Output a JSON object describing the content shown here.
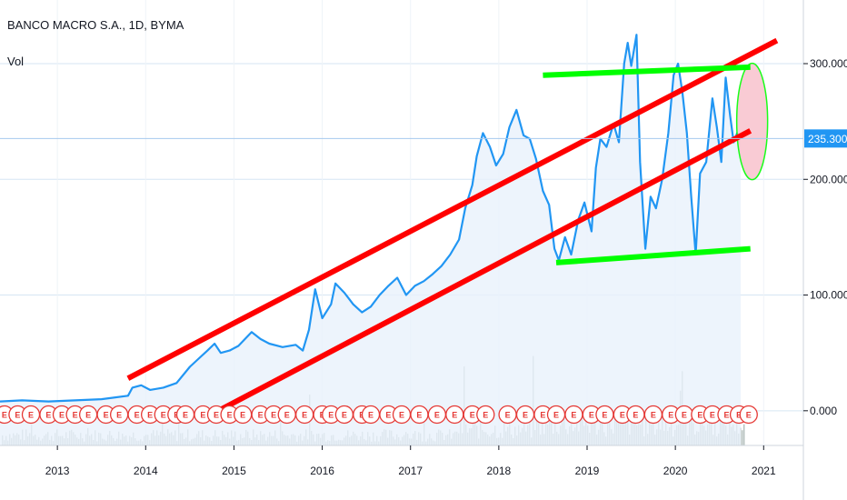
{
  "header": {
    "symbol_line": "BANCO MACRO S.A., 1D, BYMA",
    "volume_label": "Vol"
  },
  "colors": {
    "price_line": "#2196f3",
    "area_fill": "#e8f1fb",
    "volume": "#9aa8a6",
    "grid": "#d6e6f3",
    "trend_red": "#ff0000",
    "trend_green": "#00ff00",
    "ellipse_fill": "#f9c6d0",
    "price_tag": "#2196f3",
    "earnings": "#e53935"
  },
  "chart_data": {
    "type": "line",
    "title": "BANCO MACRO S.A., 1D, BYMA",
    "xlabel": "",
    "ylabel": "",
    "x_ticks": [
      "2013",
      "2014",
      "2015",
      "2016",
      "2017",
      "2018",
      "2019",
      "2020",
      "2021"
    ],
    "y_ticks": [
      "0.000",
      "100.000",
      "200.000",
      "300.000"
    ],
    "ylim": [
      -30,
      355
    ],
    "xlim": [
      2012.35,
      2021.45
    ],
    "grid": true,
    "last_price": 235.3,
    "last_price_label": "235.300",
    "series": [
      {
        "name": "",
        "points": [
          [
            2012.35,
            8
          ],
          [
            2012.6,
            9
          ],
          [
            2012.9,
            8
          ],
          [
            2013.2,
            9
          ],
          [
            2013.5,
            10
          ],
          [
            2013.8,
            13
          ],
          [
            2013.85,
            20
          ],
          [
            2013.95,
            22
          ],
          [
            2014.05,
            18
          ],
          [
            2014.2,
            20
          ],
          [
            2014.35,
            24
          ],
          [
            2014.5,
            38
          ],
          [
            2014.6,
            45
          ],
          [
            2014.7,
            52
          ],
          [
            2014.78,
            58
          ],
          [
            2014.85,
            50
          ],
          [
            2014.95,
            52
          ],
          [
            2015.05,
            56
          ],
          [
            2015.2,
            68
          ],
          [
            2015.3,
            62
          ],
          [
            2015.4,
            58
          ],
          [
            2015.55,
            55
          ],
          [
            2015.7,
            57
          ],
          [
            2015.78,
            52
          ],
          [
            2015.85,
            70
          ],
          [
            2015.92,
            105
          ],
          [
            2016.0,
            80
          ],
          [
            2016.1,
            92
          ],
          [
            2016.15,
            110
          ],
          [
            2016.25,
            102
          ],
          [
            2016.35,
            92
          ],
          [
            2016.45,
            85
          ],
          [
            2016.55,
            90
          ],
          [
            2016.65,
            100
          ],
          [
            2016.75,
            108
          ],
          [
            2016.85,
            115
          ],
          [
            2016.95,
            100
          ],
          [
            2017.05,
            108
          ],
          [
            2017.15,
            112
          ],
          [
            2017.25,
            118
          ],
          [
            2017.35,
            125
          ],
          [
            2017.45,
            135
          ],
          [
            2017.55,
            148
          ],
          [
            2017.62,
            175
          ],
          [
            2017.7,
            195
          ],
          [
            2017.75,
            220
          ],
          [
            2017.82,
            240
          ],
          [
            2017.9,
            228
          ],
          [
            2017.97,
            212
          ],
          [
            2018.05,
            222
          ],
          [
            2018.12,
            245
          ],
          [
            2018.2,
            260
          ],
          [
            2018.28,
            238
          ],
          [
            2018.35,
            235
          ],
          [
            2018.42,
            218
          ],
          [
            2018.5,
            190
          ],
          [
            2018.57,
            178
          ],
          [
            2018.63,
            140
          ],
          [
            2018.68,
            130
          ],
          [
            2018.75,
            150
          ],
          [
            2018.82,
            135
          ],
          [
            2018.9,
            165
          ],
          [
            2018.97,
            180
          ],
          [
            2019.05,
            155
          ],
          [
            2019.1,
            210
          ],
          [
            2019.15,
            235
          ],
          [
            2019.22,
            228
          ],
          [
            2019.3,
            248
          ],
          [
            2019.36,
            232
          ],
          [
            2019.42,
            300
          ],
          [
            2019.46,
            318
          ],
          [
            2019.5,
            298
          ],
          [
            2019.56,
            325
          ],
          [
            2019.6,
            215
          ],
          [
            2019.66,
            140
          ],
          [
            2019.72,
            185
          ],
          [
            2019.78,
            175
          ],
          [
            2019.85,
            200
          ],
          [
            2019.92,
            240
          ],
          [
            2019.98,
            290
          ],
          [
            2020.03,
            300
          ],
          [
            2020.08,
            275
          ],
          [
            2020.13,
            240
          ],
          [
            2020.18,
            185
          ],
          [
            2020.23,
            135
          ],
          [
            2020.28,
            205
          ],
          [
            2020.35,
            215
          ],
          [
            2020.42,
            270
          ],
          [
            2020.47,
            245
          ],
          [
            2020.52,
            215
          ],
          [
            2020.57,
            288
          ],
          [
            2020.62,
            255
          ],
          [
            2020.66,
            232
          ],
          [
            2020.7,
            240
          ],
          [
            2020.74,
            235.3
          ]
        ]
      }
    ],
    "volume_note": "volume histogram at chart bottom",
    "annotations": {
      "red_channel_upper": [
        [
          2013.8,
          28
        ],
        [
          2021.15,
          320
        ]
      ],
      "red_channel_lower": [
        [
          2014.7,
          -5
        ],
        [
          2020.85,
          242
        ]
      ],
      "green_resistance": [
        [
          2018.5,
          290
        ],
        [
          2020.85,
          297
        ]
      ],
      "green_support": [
        [
          2018.65,
          128
        ],
        [
          2020.85,
          140
        ]
      ],
      "ellipse_center": [
        2020.87,
        250
      ]
    },
    "earnings_markers": [
      2012.4,
      2012.55,
      2012.7,
      2012.9,
      2013.05,
      2013.2,
      2013.35,
      2013.55,
      2013.7,
      2013.9,
      2014.05,
      2014.2,
      2014.35,
      2014.45,
      2014.65,
      2014.8,
      2014.95,
      2015.1,
      2015.3,
      2015.45,
      2015.6,
      2015.8,
      2016.0,
      2016.1,
      2016.25,
      2016.45,
      2016.55,
      2016.75,
      2016.9,
      2017.1,
      2017.3,
      2017.5,
      2017.7,
      2017.85,
      2018.1,
      2018.3,
      2018.5,
      2018.65,
      2018.85,
      2019.05,
      2019.2,
      2019.4,
      2019.55,
      2019.75,
      2019.95,
      2020.1,
      2020.28,
      2020.42,
      2020.58,
      2020.72,
      2020.83
    ],
    "earnings_label": "E"
  }
}
